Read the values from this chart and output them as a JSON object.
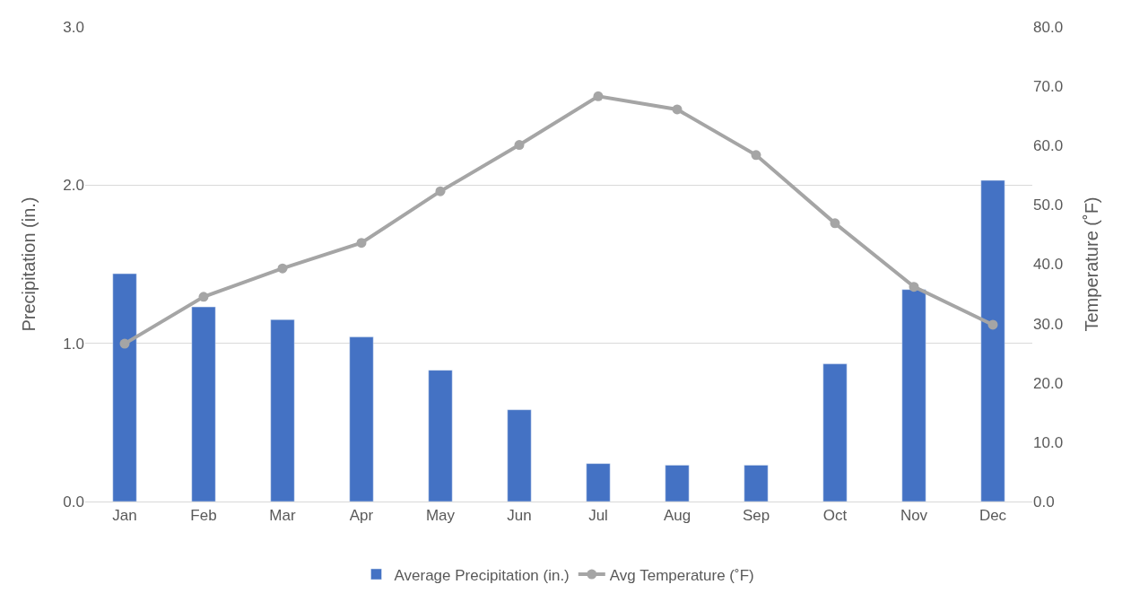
{
  "chart_data": {
    "type": "bar",
    "categories": [
      "Jan",
      "Feb",
      "Mar",
      "Apr",
      "May",
      "Jun",
      "Jul",
      "Aug",
      "Sep",
      "Oct",
      "Nov",
      "Dec"
    ],
    "ylabel": "Precipitation (in.)",
    "y2label": "Temperature (˚F)",
    "series": [
      {
        "name": "Average Precipitation (in.)",
        "color": "#4472c4",
        "values": [
          1.44,
          1.23,
          1.15,
          1.04,
          0.83,
          0.58,
          0.24,
          0.23,
          0.23,
          0.87,
          1.34,
          2.03
        ]
      },
      {
        "name": "Avg Temperature (˚F)",
        "type": "line",
        "axis": "y2",
        "color": "#a5a5a5",
        "marker": "circle",
        "values": [
          26.6,
          34.5,
          39.3,
          43.6,
          52.3,
          60.1,
          68.3,
          66.1,
          58.4,
          46.9,
          36.2,
          29.8
        ]
      }
    ],
    "ylim": [
      0,
      3
    ],
    "yticks": [
      {
        "value": 0,
        "label": "0.0"
      },
      {
        "value": 1,
        "label": "1.0"
      },
      {
        "value": 2,
        "label": "2.0"
      },
      {
        "value": 3,
        "label": "3.0"
      }
    ],
    "y2lim": [
      0,
      80
    ],
    "y2ticks": [
      {
        "value": 0,
        "label": "0.0"
      },
      {
        "value": 10,
        "label": "10.0"
      },
      {
        "value": 20,
        "label": "20.0"
      },
      {
        "value": 30,
        "label": "30.0"
      },
      {
        "value": 40,
        "label": "40.0"
      },
      {
        "value": 50,
        "label": "50.0"
      },
      {
        "value": 60,
        "label": "60.0"
      },
      {
        "value": 70,
        "label": "70.0"
      },
      {
        "value": 80,
        "label": "80.0"
      }
    ],
    "grid": "y",
    "legend": "bottom"
  }
}
